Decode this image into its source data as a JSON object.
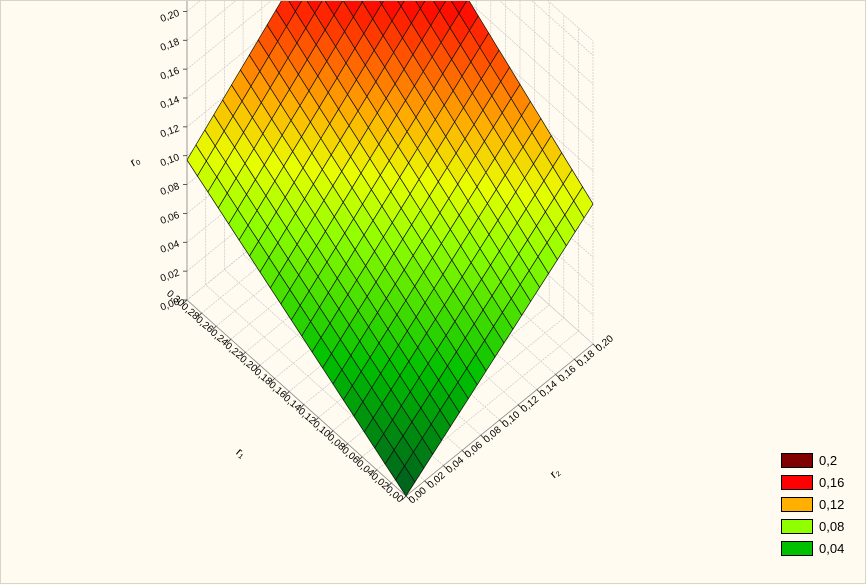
{
  "chart_data": {
    "type": "surface",
    "xlabel": "r₁",
    "ylabel": "r₂",
    "zlabel": "r₀",
    "x_ticks": [
      "0,00",
      "0,02",
      "0,04",
      "0,06",
      "0,08",
      "0,10",
      "0,12",
      "0,14",
      "0,16",
      "0,18",
      "0,20",
      "0,22",
      "0,24",
      "0,26",
      "0,28",
      "0,30"
    ],
    "y_ticks": [
      "0,00",
      "0,02",
      "0,04",
      "0,06",
      "0,08",
      "0,10",
      "0,12",
      "0,14",
      "0,16",
      "0,18",
      "0,20"
    ],
    "z_ticks": [
      "0,00",
      "0,02",
      "0,04",
      "0,06",
      "0,08",
      "0,10",
      "0,12",
      "0,14",
      "0,16",
      "0,18",
      "0,20"
    ],
    "xlim": [
      0,
      0.3
    ],
    "ylim": [
      0,
      0.2
    ],
    "zlim": [
      0,
      0.21
    ],
    "surface": {
      "z_at_x0_y0": 0.0,
      "z_at_xmax_y0": 0.097,
      "z_at_x0_ymax": 0.097,
      "z_at_xmax_ymax": 0.21
    },
    "legend": [
      {
        "label": "0,2",
        "color": "#800000"
      },
      {
        "label": "0,16",
        "color": "#ff0000"
      },
      {
        "label": "0,12",
        "color": "#ffb000"
      },
      {
        "label": "0,08",
        "color": "#90ff00"
      },
      {
        "label": "0,04",
        "color": "#00c000"
      }
    ]
  }
}
